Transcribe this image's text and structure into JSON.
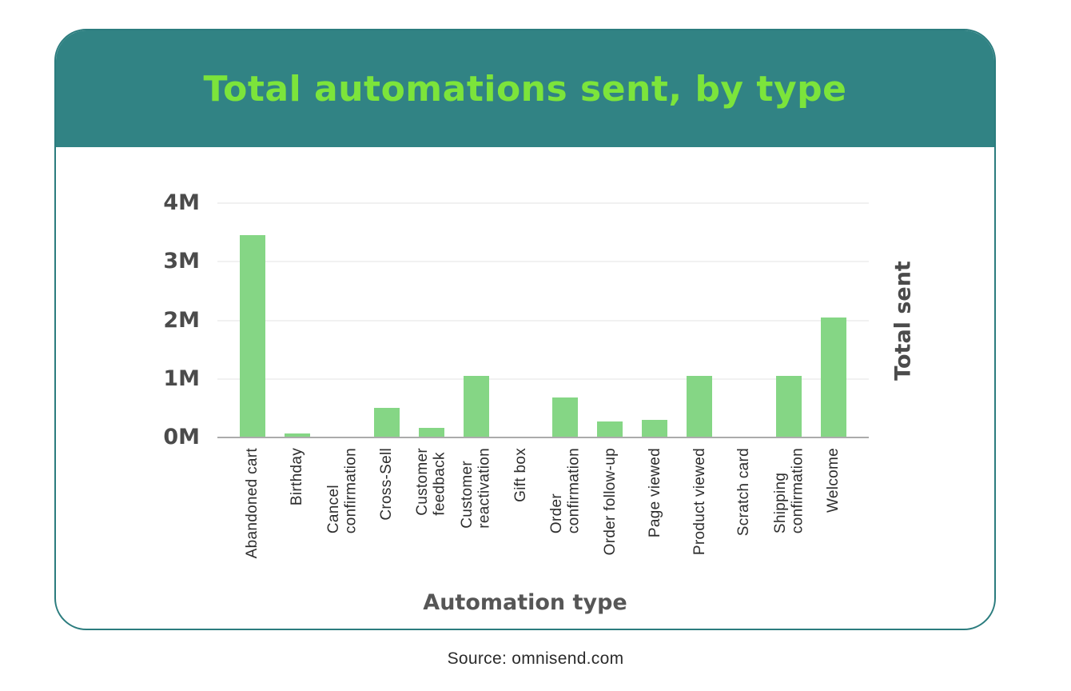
{
  "colors": {
    "header_bg": "#318384",
    "card_border": "#2b7c7e",
    "title_text": "#7ce43b",
    "bar_fill": "#85d685",
    "axis_line": "#ababab",
    "gridline": "#f1f1f1",
    "tick_text": "#4b4b4b"
  },
  "chart_data": {
    "type": "bar",
    "title": "Total automations sent, by type",
    "xlabel": "Automation type",
    "ylabel": "Total sent",
    "unit": "M",
    "ylim": [
      0,
      4
    ],
    "yticks": [
      "0M",
      "1M",
      "2M",
      "3M",
      "4M"
    ],
    "grid": true,
    "legend": false,
    "categories": [
      "Abandoned cart",
      "Birthday",
      "Cancel confirmation",
      "Cross-Sell",
      "Customer feedback",
      "Customer reactivation",
      "Gift box",
      "Order confirmation",
      "Order follow-up",
      "Page viewed",
      "Product viewed",
      "Scratch card",
      "Shipping confirmation",
      "Welcome"
    ],
    "tick_labels": [
      "Abandoned cart",
      "Birthday",
      "Cancel\nconfirmation",
      "Cross-Sell",
      "Customer\nfeedback",
      "Customer\nreactivation",
      "Gift box",
      "Order\nconfirmation",
      "Order follow-up",
      "Page viewed",
      "Product viewed",
      "Scratch card",
      "Shipping\nconfirmation",
      "Welcome"
    ],
    "values_millions": [
      3.45,
      0.07,
      0,
      0.5,
      0.17,
      1.05,
      0,
      0.68,
      0.28,
      0.3,
      1.05,
      0,
      1.05,
      2.05
    ]
  },
  "source_label": "Source: omnisend.com"
}
